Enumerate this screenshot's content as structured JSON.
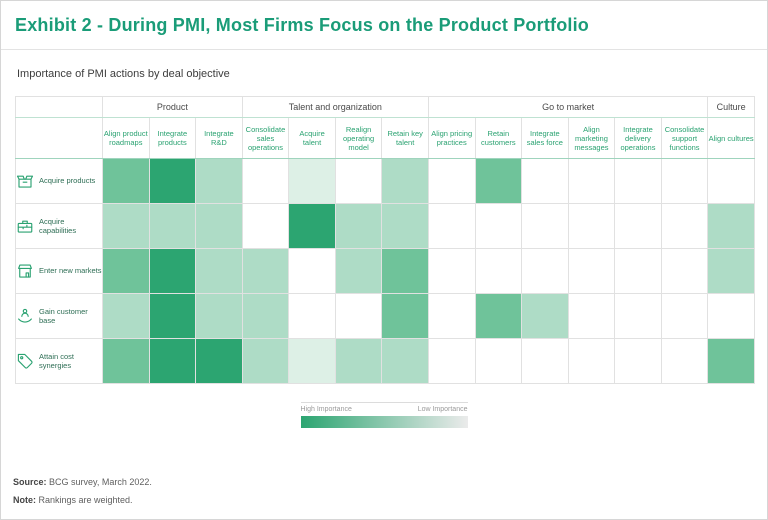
{
  "title": "Exhibit 2 - During PMI, Most Firms Focus on the Product Portfolio",
  "subtitle": "Importance of PMI actions by deal objective",
  "colors": {
    "title_green": "#1a9c78",
    "header_green": "#2aa271",
    "row_label_green": "#2e6e55",
    "scale": [
      "#ffffff",
      "#ddf0e6",
      "#aedcc6",
      "#6fc39a",
      "#2ca571"
    ],
    "legend_gradient_start": "#2ca571",
    "legend_gradient_end": "#ebebeb"
  },
  "chart_data": {
    "type": "heatmap",
    "title": "Importance of PMI actions by deal objective",
    "value_scale": {
      "levels": [
        0,
        1,
        2,
        3,
        4
      ],
      "high_label": "High Importance",
      "low_label": "Low Importance"
    },
    "column_groups": [
      {
        "label": "Product",
        "columns": [
          "Align product roadmaps",
          "Integrate products",
          "Integrate R&D"
        ]
      },
      {
        "label": "Talent and organization",
        "columns": [
          "Consolidate sales operations",
          "Acquire talent",
          "Realign operating model",
          "Retain key talent"
        ]
      },
      {
        "label": "Go to market",
        "columns": [
          "Align pricing practices",
          "Retain customers",
          "Integrate sales force",
          "Align marketing messages",
          "Integrate delivery operations",
          "Consolidate support functions"
        ]
      },
      {
        "label": "Culture",
        "columns": [
          "Align cultures"
        ]
      }
    ],
    "rows": [
      {
        "label": "Acquire products",
        "icon": "products-box-icon",
        "values": [
          3,
          4,
          2,
          0,
          1,
          0,
          2,
          0,
          3,
          0,
          0,
          0,
          0,
          0
        ]
      },
      {
        "label": "Acquire capabilities",
        "icon": "capabilities-case-icon",
        "values": [
          2,
          2,
          2,
          0,
          4,
          2,
          2,
          0,
          0,
          0,
          0,
          0,
          0,
          2
        ]
      },
      {
        "label": "Enter new markets",
        "icon": "storefront-icon",
        "values": [
          3,
          4,
          2,
          2,
          0,
          2,
          3,
          0,
          0,
          0,
          0,
          0,
          0,
          2
        ]
      },
      {
        "label": "Gain customer base",
        "icon": "customer-hand-icon",
        "values": [
          2,
          4,
          2,
          2,
          0,
          0,
          3,
          0,
          3,
          2,
          0,
          0,
          0,
          0
        ]
      },
      {
        "label": "Attain cost synergies",
        "icon": "price-tag-icon",
        "values": [
          3,
          4,
          4,
          2,
          1,
          2,
          2,
          0,
          0,
          0,
          0,
          0,
          0,
          3
        ]
      }
    ]
  },
  "legend": {
    "high_label": "High Importance",
    "low_label": "Low Importance"
  },
  "footer": {
    "source_label": "Source:",
    "source_text": " BCG survey, March 2022.",
    "note_label": "Note:",
    "note_text": " Rankings are weighted."
  }
}
